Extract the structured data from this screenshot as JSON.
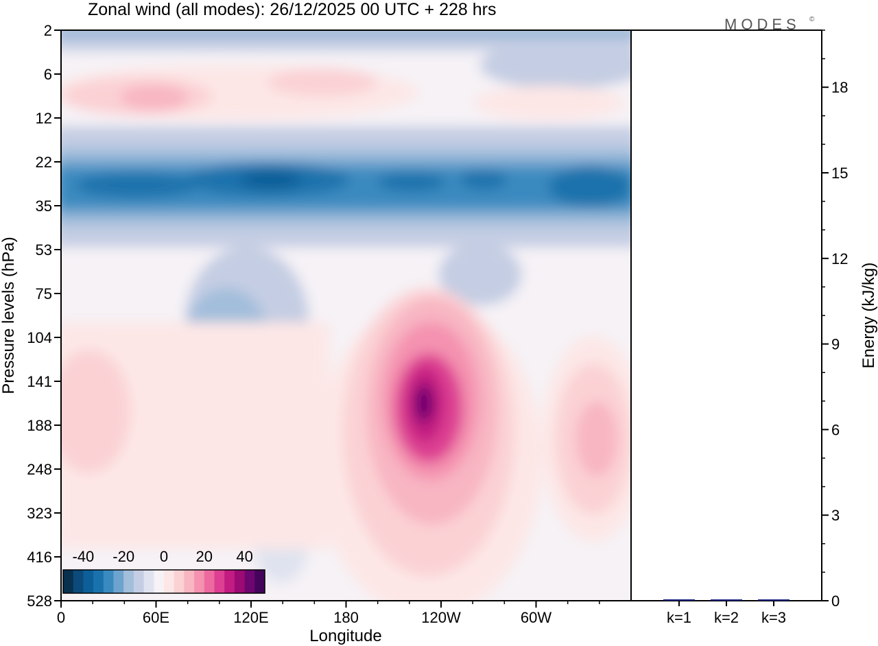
{
  "title": "Zonal wind (all modes):  26/12/2025  00 UTC  + 228 hrs",
  "logo": {
    "text": "MODES",
    "mark": "©"
  },
  "chart_data": [
    {
      "type": "heatmap",
      "title": "Zonal wind (all modes):  26/12/2025  00 UTC  + 228 hrs",
      "xlabel": "Longitude",
      "ylabel": "Pressure levels (hPa)",
      "x_ticks": [
        "0",
        "60E",
        "120E",
        "180",
        "120W",
        "60W"
      ],
      "y_ticks": [
        "2",
        "6",
        "12",
        "22",
        "35",
        "53",
        "75",
        "104",
        "141",
        "188",
        "248",
        "323",
        "416",
        "528"
      ],
      "colorbar": {
        "labels": [
          "-40",
          "-20",
          "0",
          "20",
          "40"
        ],
        "range": [
          -50,
          50
        ],
        "levels": [
          -45,
          -40,
          -35,
          -30,
          -25,
          -20,
          -15,
          -10,
          -5,
          0,
          5,
          10,
          15,
          20,
          25,
          30,
          35,
          40,
          45
        ],
        "colors": [
          "#08304f",
          "#0b4a7a",
          "#0d5f99",
          "#1a72ac",
          "#3b8abf",
          "#6ea3cd",
          "#a2bedb",
          "#c4cde3",
          "#dfe3ef",
          "#f6f2f6",
          "#fde7e6",
          "#fbd1d4",
          "#f8b5c2",
          "#f492b0",
          "#ec6aa0",
          "#dd3f92",
          "#c21b81",
          "#9c0a74",
          "#6e0670",
          "#45045c"
        ]
      },
      "features": [
        {
          "name": "westward jet core near 25-35 hPa",
          "value_approx": -35
        },
        {
          "name": "eastward maximum near 150W, 141-188 hPa",
          "value_approx": 40
        },
        {
          "name": "eastward maximum near 30W, 188 hPa",
          "value_approx": 20
        },
        {
          "name": "eastward maximum near 40E, 10 hPa",
          "value_approx": 20
        }
      ]
    },
    {
      "type": "bar",
      "ylabel": "Energy (kJ/kg)",
      "categories": [
        "k=1",
        "k=2",
        "k=3"
      ],
      "values": [
        0.05,
        0.03,
        0.04
      ],
      "ylim": [
        0,
        20
      ],
      "y_ticks": [
        "0",
        "3",
        "6",
        "9",
        "12",
        "15",
        "18"
      ],
      "bar_color": "#1a237e"
    }
  ]
}
